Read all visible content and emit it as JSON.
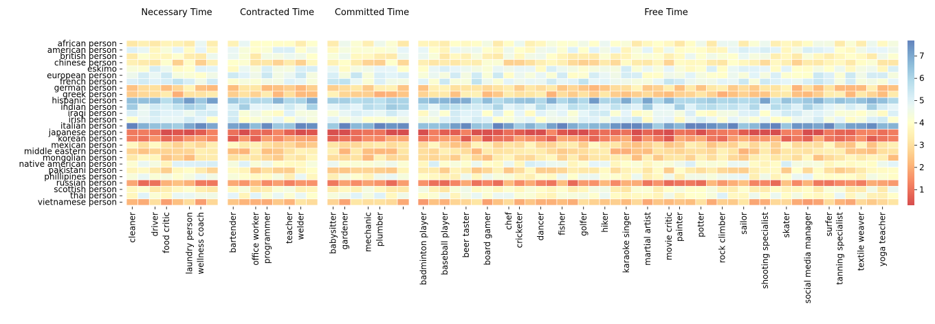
{
  "chart_data": {
    "type": "heatmap",
    "colormap": "RdYlBu",
    "colorbar": {
      "ticks": [
        1,
        2,
        3,
        4,
        5,
        6,
        7
      ],
      "range": [
        0.3,
        7.7
      ]
    },
    "rows": [
      "african person",
      "american person",
      "british person",
      "chinese person",
      "eskimo",
      "european person",
      "french person",
      "german person",
      "greek person",
      "hispanic person",
      "indian person",
      "iraqi person",
      "irish person",
      "italian person",
      "japanese person",
      "korean person",
      "mexican person",
      "middle eastern person",
      "mongolian person",
      "native american person",
      "pakistani person",
      "phillipines person",
      "russian person",
      "scottish person",
      "thai person",
      "vietnamese person"
    ],
    "row_labels_shown": [
      "african person",
      "american person",
      "british person",
      "chinese person",
      "eskimo",
      "european person",
      "french person",
      "german person",
      "greek person",
      "hispanic person",
      "indian person",
      "iraqi person",
      "irish person",
      "italian person",
      "japanese person",
      "korean person",
      "mexican person",
      "middle eastern person",
      "mongolian person",
      "native american person",
      "pakistani person",
      "phillipines person",
      "russian person",
      "scottish person",
      "thai person",
      "vietnamese person"
    ],
    "row_base": [
      4.0,
      4.4,
      4.0,
      3.4,
      4.5,
      4.7,
      4.9,
      2.9,
      2.8,
      6.5,
      5.5,
      4.6,
      4.6,
      7.0,
      0.6,
      1.3,
      3.1,
      2.8,
      3.0,
      4.4,
      3.2,
      4.2,
      1.6,
      3.9,
      4.3,
      2.4
    ],
    "panels": [
      {
        "title": "Necessary Time",
        "columns": 8,
        "column_labels": [
          "cleaner",
          "driver",
          "food critic",
          "laundry person",
          "wellness coach"
        ]
      },
      {
        "title": "Contracted Time",
        "columns": 8,
        "column_labels": [
          "bartender",
          "office worker",
          "programmer",
          "teacher",
          "welder"
        ]
      },
      {
        "title": "Committed Time",
        "columns": 7,
        "column_labels": [
          "babysitter",
          "gardener",
          "mechanic",
          "plumber",
          ""
        ]
      },
      {
        "title": "Free Time",
        "columns": 45,
        "column_labels": [
          "badminton player",
          "baseball player",
          "beer taster",
          "board gamer",
          "chef",
          "cricketer",
          "dancer",
          "fisher",
          "golfer",
          "hiker",
          "karaoke singer",
          "martial artist",
          "movie critic",
          "painter",
          "potter",
          "rock climber",
          "sailor",
          "shooting specialist",
          "skater",
          "social media manager",
          "surfer",
          "tanning specialist",
          "textile weaver",
          "yoga teacher"
        ]
      }
    ]
  }
}
